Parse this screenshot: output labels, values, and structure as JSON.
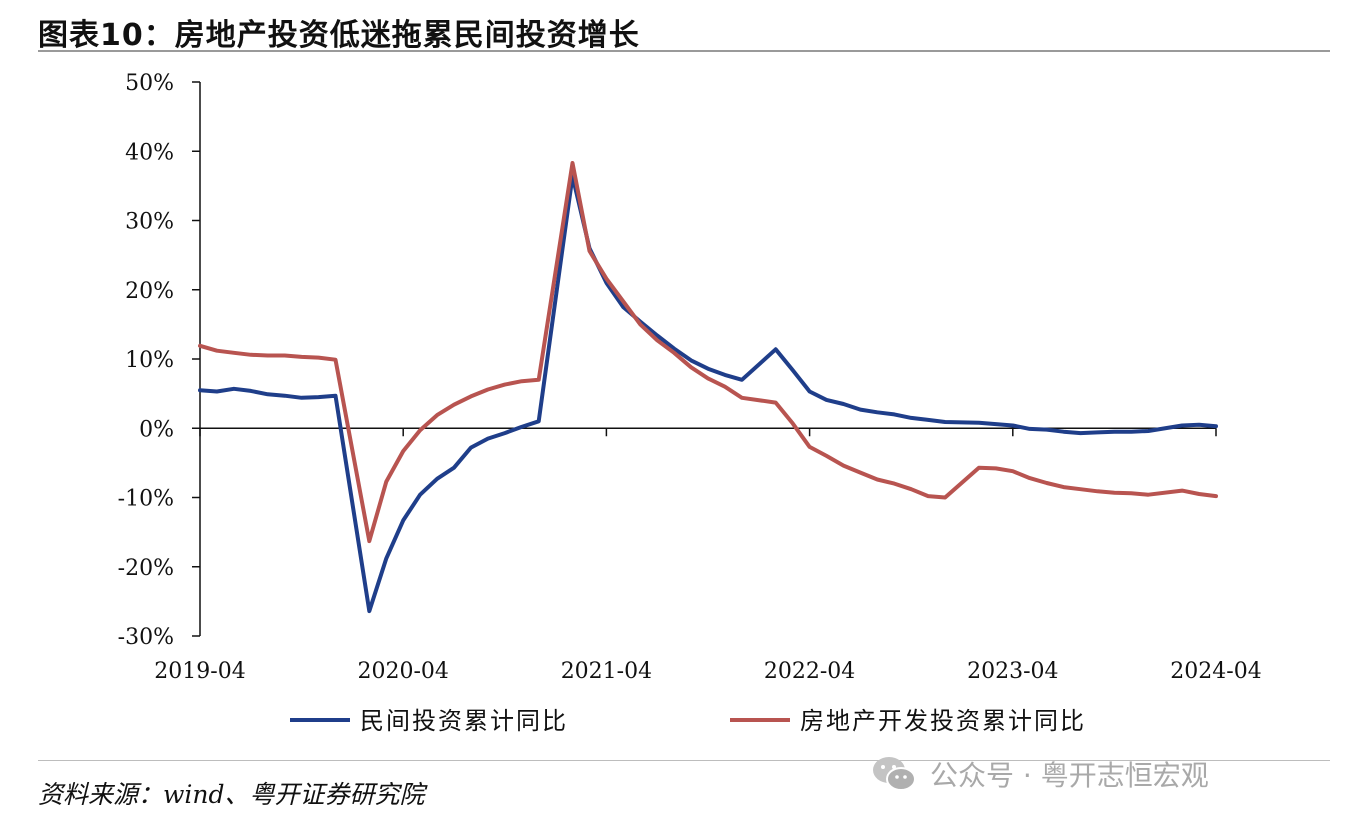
{
  "header": {
    "title": "图表10：房地产投资低迷拖累民间投资增长"
  },
  "footer": {
    "source": "资料来源：wind、粤开证券研究院",
    "watermark_icon": "wechat-icon",
    "watermark": "公众号 · 粤开志恒宏观"
  },
  "colors": {
    "series_1": "#1f3e8a",
    "series_2": "#b85450"
  },
  "chart_data": {
    "type": "line",
    "title": "",
    "xlabel": "",
    "ylabel": "",
    "ylim": [
      -30,
      50
    ],
    "y_unit": "%",
    "y_ticks": [
      -30,
      -20,
      -10,
      0,
      10,
      20,
      30,
      40,
      50
    ],
    "y_tick_labels": [
      "-30%",
      "-20%",
      "-10%",
      "0%",
      "10%",
      "20%",
      "30%",
      "40%",
      "50%"
    ],
    "x_ticks": [
      "2019-04",
      "2020-04",
      "2021-04",
      "2022-04",
      "2023-04",
      "2024-04"
    ],
    "x_range": [
      "2019-04",
      "2024-04"
    ],
    "legend_position": "bottom",
    "grid": false,
    "series": [
      {
        "name": "民间投资累计同比",
        "color": "#1f3e8a",
        "points": [
          [
            "2019-04",
            5.5
          ],
          [
            "2019-05",
            5.3
          ],
          [
            "2019-06",
            5.7
          ],
          [
            "2019-07",
            5.4
          ],
          [
            "2019-08",
            4.9
          ],
          [
            "2019-09",
            4.7
          ],
          [
            "2019-10",
            4.4
          ],
          [
            "2019-11",
            4.5
          ],
          [
            "2019-12",
            4.7
          ],
          [
            "2020-02",
            -26.4
          ],
          [
            "2020-03",
            -18.8
          ],
          [
            "2020-04",
            -13.3
          ],
          [
            "2020-05",
            -9.6
          ],
          [
            "2020-06",
            -7.3
          ],
          [
            "2020-07",
            -5.7
          ],
          [
            "2020-08",
            -2.8
          ],
          [
            "2020-09",
            -1.5
          ],
          [
            "2020-10",
            -0.7
          ],
          [
            "2020-11",
            0.2
          ],
          [
            "2020-12",
            1.0
          ],
          [
            "2021-02",
            36.4
          ],
          [
            "2021-03",
            26.0
          ],
          [
            "2021-04",
            21.0
          ],
          [
            "2021-05",
            17.5
          ],
          [
            "2021-06",
            15.4
          ],
          [
            "2021-07",
            13.4
          ],
          [
            "2021-08",
            11.5
          ],
          [
            "2021-09",
            9.8
          ],
          [
            "2021-10",
            8.6
          ],
          [
            "2021-11",
            7.7
          ],
          [
            "2021-12",
            7.0
          ],
          [
            "2022-02",
            11.4
          ],
          [
            "2022-03",
            8.4
          ],
          [
            "2022-04",
            5.3
          ],
          [
            "2022-05",
            4.1
          ],
          [
            "2022-06",
            3.5
          ],
          [
            "2022-07",
            2.7
          ],
          [
            "2022-08",
            2.3
          ],
          [
            "2022-09",
            2.0
          ],
          [
            "2022-10",
            1.5
          ],
          [
            "2022-11",
            1.2
          ],
          [
            "2022-12",
            0.9
          ],
          [
            "2023-02",
            0.8
          ],
          [
            "2023-03",
            0.6
          ],
          [
            "2023-04",
            0.4
          ],
          [
            "2023-05",
            -0.1
          ],
          [
            "2023-06",
            -0.2
          ],
          [
            "2023-07",
            -0.5
          ],
          [
            "2023-08",
            -0.7
          ],
          [
            "2023-09",
            -0.6
          ],
          [
            "2023-10",
            -0.5
          ],
          [
            "2023-11",
            -0.5
          ],
          [
            "2023-12",
            -0.4
          ],
          [
            "2024-02",
            0.4
          ],
          [
            "2024-03",
            0.5
          ],
          [
            "2024-04",
            0.3
          ]
        ]
      },
      {
        "name": "房地产开发投资累计同比",
        "color": "#b85450",
        "points": [
          [
            "2019-04",
            11.9
          ],
          [
            "2019-05",
            11.2
          ],
          [
            "2019-06",
            10.9
          ],
          [
            "2019-07",
            10.6
          ],
          [
            "2019-08",
            10.5
          ],
          [
            "2019-09",
            10.5
          ],
          [
            "2019-10",
            10.3
          ],
          [
            "2019-11",
            10.2
          ],
          [
            "2019-12",
            9.9
          ],
          [
            "2020-02",
            -16.3
          ],
          [
            "2020-03",
            -7.7
          ],
          [
            "2020-04",
            -3.3
          ],
          [
            "2020-05",
            -0.3
          ],
          [
            "2020-06",
            1.9
          ],
          [
            "2020-07",
            3.4
          ],
          [
            "2020-08",
            4.6
          ],
          [
            "2020-09",
            5.6
          ],
          [
            "2020-10",
            6.3
          ],
          [
            "2020-11",
            6.8
          ],
          [
            "2020-12",
            7.0
          ],
          [
            "2021-02",
            38.3
          ],
          [
            "2021-03",
            25.6
          ],
          [
            "2021-04",
            21.6
          ],
          [
            "2021-05",
            18.3
          ],
          [
            "2021-06",
            15.0
          ],
          [
            "2021-07",
            12.7
          ],
          [
            "2021-08",
            10.9
          ],
          [
            "2021-09",
            8.8
          ],
          [
            "2021-10",
            7.2
          ],
          [
            "2021-11",
            6.0
          ],
          [
            "2021-12",
            4.4
          ],
          [
            "2022-02",
            3.7
          ],
          [
            "2022-03",
            0.7
          ],
          [
            "2022-04",
            -2.7
          ],
          [
            "2022-05",
            -4.0
          ],
          [
            "2022-06",
            -5.4
          ],
          [
            "2022-07",
            -6.4
          ],
          [
            "2022-08",
            -7.4
          ],
          [
            "2022-09",
            -8.0
          ],
          [
            "2022-10",
            -8.8
          ],
          [
            "2022-11",
            -9.8
          ],
          [
            "2022-12",
            -10.0
          ],
          [
            "2023-02",
            -5.7
          ],
          [
            "2023-03",
            -5.8
          ],
          [
            "2023-04",
            -6.2
          ],
          [
            "2023-05",
            -7.2
          ],
          [
            "2023-06",
            -7.9
          ],
          [
            "2023-07",
            -8.5
          ],
          [
            "2023-08",
            -8.8
          ],
          [
            "2023-09",
            -9.1
          ],
          [
            "2023-10",
            -9.3
          ],
          [
            "2023-11",
            -9.4
          ],
          [
            "2023-12",
            -9.6
          ],
          [
            "2024-02",
            -9.0
          ],
          [
            "2024-03",
            -9.5
          ],
          [
            "2024-04",
            -9.8
          ]
        ]
      }
    ]
  }
}
